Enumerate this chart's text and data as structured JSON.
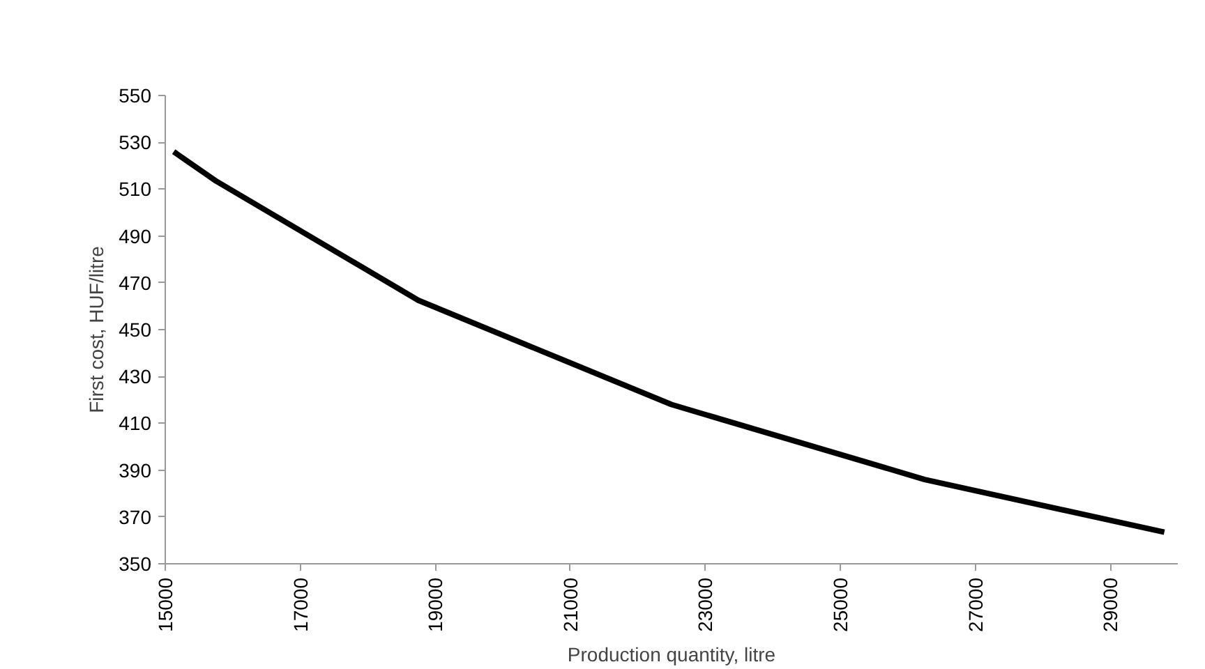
{
  "chart_data": {
    "type": "line",
    "xlabel": "Production quantity, litre",
    "ylabel": "First cost, HUF/litre",
    "x": [
      15125,
      15750,
      18750,
      22500,
      26250,
      29800
    ],
    "series": [
      {
        "color": "#000000",
        "values": [
          526,
          513.5,
          462.5,
          418,
          386,
          363.5
        ]
      }
    ],
    "xlim": [
      15000,
      30000
    ],
    "xticks": [
      15000,
      17000,
      19000,
      21000,
      23000,
      25000,
      27000,
      29000
    ],
    "ylim": [
      350,
      550
    ],
    "yticks": [
      350,
      370,
      390,
      410,
      430,
      450,
      470,
      490,
      510,
      530,
      550
    ],
    "grid": false,
    "marker": "none",
    "line_style": "solid"
  }
}
